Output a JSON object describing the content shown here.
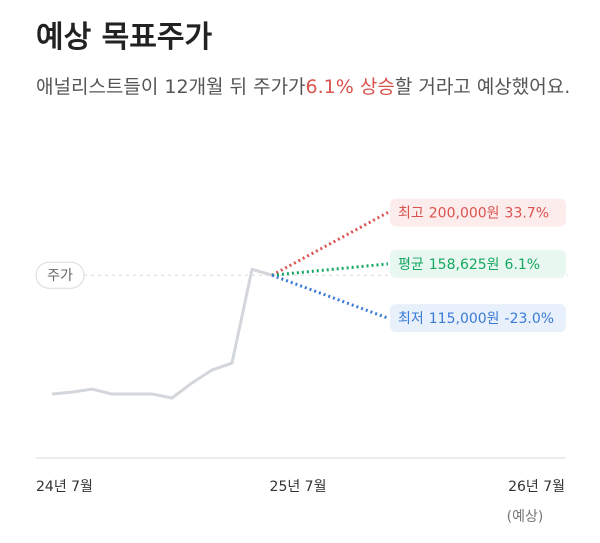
{
  "header": {
    "title": "예상 목표주가",
    "subtitle_before": "애널리스트들이 12개월 뒤 주가가",
    "subtitle_highlight": "6.1% 상승",
    "subtitle_after": "할 거라고 예상했어요."
  },
  "chart_data": {
    "type": "line",
    "series": [
      {
        "name": "주가",
        "color": "#d3d6da",
        "values": [
          54000,
          55500,
          58000,
          54000,
          54000,
          54000,
          50800,
          62900,
          73300,
          78900,
          154300,
          149500
        ]
      }
    ],
    "ylim": [
      9000,
      210000
    ],
    "x_labels": [
      "24년 7월",
      "25년 7월",
      "26년 7월"
    ],
    "x_note": "(예상)",
    "targets": [
      {
        "name": "최고",
        "value": 200000,
        "value_label": "200,000원",
        "change": 33.7,
        "change_label": "33.7%",
        "color": "#d9534f",
        "bg": "#fdecec"
      },
      {
        "name": "평균",
        "value": 158625,
        "value_label": "158,625원",
        "change": 6.1,
        "change_label": "6.1%",
        "color": "#16a862",
        "bg": "#e8f7ef"
      },
      {
        "name": "최저",
        "value": 115000,
        "value_label": "115,000원",
        "change": -23.0,
        "change_label": "-23.0%",
        "color": "#3a7bd5",
        "bg": "#e8f0fc"
      }
    ]
  }
}
